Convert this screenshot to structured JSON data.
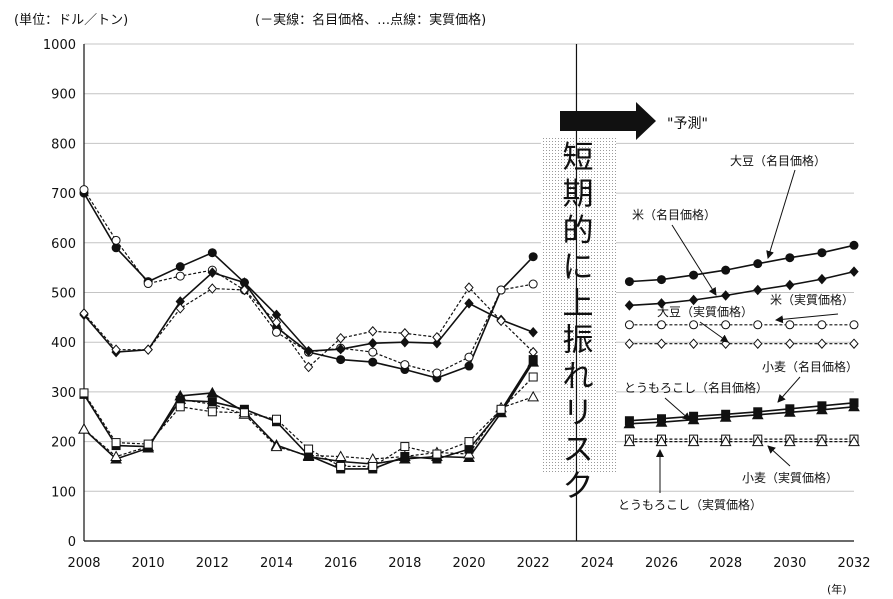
{
  "header": {
    "unit": "(単位：ドル／トン)",
    "legend_note": "(－実線：名目価格、…点線：実質価格)"
  },
  "forecast": {
    "label": "\"予測\"",
    "risk_text": "短期的に上振れリスク"
  },
  "chart_data": {
    "type": "line",
    "x_unit": "(年)",
    "xlim": [
      2008,
      2032
    ],
    "ylim": [
      0,
      1000
    ],
    "x_ticks": [
      "2008",
      "2010",
      "2012",
      "2014",
      "2016",
      "2018",
      "2020",
      "2022",
      "2024",
      "2026",
      "2028",
      "2030",
      "2032"
    ],
    "y_ticks": [
      "0",
      "100",
      "200",
      "300",
      "400",
      "500",
      "600",
      "700",
      "800",
      "900",
      "1000"
    ],
    "forecast_divider_x": 2023.35,
    "grid": true,
    "series": [
      {
        "name": "米（名目価格）",
        "style": "solid",
        "marker": "circle-filled",
        "x": [
          2008,
          2009,
          2010,
          2011,
          2012,
          2013,
          2014,
          2015,
          2016,
          2017,
          2018,
          2019,
          2020,
          2021,
          2022
        ],
        "y": [
          700,
          590,
          522,
          552,
          580,
          520,
          430,
          380,
          365,
          360,
          345,
          328,
          352,
          505,
          572
        ]
      },
      {
        "name": "米（実質価格）",
        "style": "dotted",
        "marker": "circle-open",
        "x": [
          2008,
          2009,
          2010,
          2011,
          2012,
          2013,
          2014,
          2015,
          2016,
          2017,
          2018,
          2019,
          2020,
          2021,
          2022
        ],
        "y": [
          707,
          605,
          518,
          533,
          545,
          505,
          420,
          380,
          388,
          380,
          355,
          338,
          370,
          505,
          517
        ]
      },
      {
        "name": "大豆（名目価格）",
        "style": "solid",
        "marker": "diamond-filled",
        "x": [
          2008,
          2009,
          2010,
          2011,
          2012,
          2013,
          2014,
          2015,
          2016,
          2017,
          2018,
          2019,
          2020,
          2021,
          2022
        ],
        "y": [
          455,
          380,
          385,
          482,
          540,
          520,
          455,
          382,
          386,
          398,
          400,
          398,
          478,
          445,
          420
        ]
      },
      {
        "name": "大豆（実質価格）",
        "style": "dotted",
        "marker": "diamond-open",
        "x": [
          2008,
          2009,
          2010,
          2011,
          2012,
          2013,
          2014,
          2015,
          2016,
          2017,
          2018,
          2019,
          2020,
          2021,
          2022
        ],
        "y": [
          458,
          385,
          385,
          468,
          508,
          505,
          440,
          350,
          408,
          422,
          418,
          410,
          510,
          443,
          380
        ]
      },
      {
        "name": "とうもろこし（名目価格）",
        "style": "solid",
        "marker": "triangle-filled",
        "x": [
          2008,
          2009,
          2010,
          2011,
          2012,
          2013,
          2014,
          2015,
          2016,
          2017,
          2018,
          2019,
          2020,
          2021,
          2022
        ],
        "y": [
          225,
          165,
          187,
          292,
          298,
          260,
          193,
          170,
          160,
          155,
          165,
          170,
          168,
          258,
          360
        ]
      },
      {
        "name": "とうもろこし（実質価格）",
        "style": "dotted",
        "marker": "triangle-open",
        "x": [
          2008,
          2009,
          2010,
          2011,
          2012,
          2013,
          2014,
          2015,
          2016,
          2017,
          2018,
          2019,
          2020,
          2021,
          2022
        ],
        "y": [
          225,
          170,
          190,
          285,
          275,
          255,
          190,
          172,
          170,
          165,
          170,
          178,
          175,
          268,
          290
        ]
      },
      {
        "name": "小麦（名目価格）",
        "style": "solid",
        "marker": "square-filled",
        "x": [
          2008,
          2009,
          2010,
          2011,
          2012,
          2013,
          2014,
          2015,
          2016,
          2017,
          2018,
          2019,
          2020,
          2021,
          2022
        ],
        "y": [
          295,
          192,
          190,
          283,
          280,
          265,
          240,
          172,
          145,
          145,
          170,
          165,
          185,
          263,
          365
        ]
      },
      {
        "name": "小麦（実質価格）",
        "style": "dotted",
        "marker": "square-open",
        "x": [
          2008,
          2009,
          2010,
          2011,
          2012,
          2013,
          2014,
          2015,
          2016,
          2017,
          2018,
          2019,
          2020,
          2021,
          2022
        ],
        "y": [
          298,
          198,
          195,
          270,
          260,
          258,
          245,
          185,
          150,
          150,
          190,
          175,
          200,
          265,
          330
        ]
      },
      {
        "name": "大豆（名目価格）",
        "style": "solid",
        "marker": "circle-filled",
        "x": [
          2025,
          2026,
          2027,
          2028,
          2029,
          2030,
          2031,
          2032
        ],
        "y": [
          522,
          526,
          535,
          545,
          558,
          570,
          580,
          595
        ]
      },
      {
        "name": "米（名目価格）",
        "style": "solid",
        "marker": "diamond-filled",
        "x": [
          2025,
          2026,
          2027,
          2028,
          2029,
          2030,
          2031,
          2032
        ],
        "y": [
          474,
          478,
          485,
          494,
          505,
          515,
          527,
          542
        ]
      },
      {
        "name": "米（実質価格）",
        "style": "dotted",
        "marker": "circle-open",
        "x": [
          2025,
          2026,
          2027,
          2028,
          2029,
          2030,
          2031,
          2032
        ],
        "y": [
          435,
          435,
          435,
          435,
          435,
          435,
          435,
          435
        ]
      },
      {
        "name": "大豆（実質価格）",
        "style": "dotted",
        "marker": "diamond-open",
        "x": [
          2025,
          2026,
          2027,
          2028,
          2029,
          2030,
          2031,
          2032
        ],
        "y": [
          397,
          397,
          397,
          397,
          397,
          397,
          397,
          397
        ]
      },
      {
        "name": "小麦（名目価格）",
        "style": "solid",
        "marker": "square-filled",
        "x": [
          2025,
          2026,
          2027,
          2028,
          2029,
          2030,
          2031,
          2032
        ],
        "y": [
          242,
          246,
          251,
          255,
          260,
          266,
          272,
          278
        ]
      },
      {
        "name": "とうもろこし（名目価格）",
        "style": "solid",
        "marker": "triangle-filled",
        "x": [
          2025,
          2026,
          2027,
          2028,
          2029,
          2030,
          2031,
          2032
        ],
        "y": [
          236,
          239,
          244,
          249,
          254,
          259,
          264,
          270
        ]
      },
      {
        "name": "小麦（実質価格）",
        "style": "dotted",
        "marker": "square-open",
        "x": [
          2025,
          2026,
          2027,
          2028,
          2029,
          2030,
          2031,
          2032
        ],
        "y": [
          205,
          205,
          205,
          205,
          205,
          205,
          205,
          205
        ]
      },
      {
        "name": "とうもろこし（実質価格）",
        "style": "dotted",
        "marker": "triangle-open",
        "x": [
          2025,
          2026,
          2027,
          2028,
          2029,
          2030,
          2031,
          2032
        ],
        "y": [
          200,
          200,
          200,
          200,
          200,
          200,
          200,
          200
        ]
      }
    ],
    "annotations": [
      {
        "text": "大豆（名目価格）"
      },
      {
        "text": "米（名目価格）"
      },
      {
        "text": "大豆（実質価格）"
      },
      {
        "text": "米（実質価格）"
      },
      {
        "text": "小麦（名目価格）"
      },
      {
        "text": "とうもろこし（名目価格）"
      },
      {
        "text": "小麦（実質価格）"
      },
      {
        "text": "とうもろこし（実質価格）"
      }
    ]
  }
}
